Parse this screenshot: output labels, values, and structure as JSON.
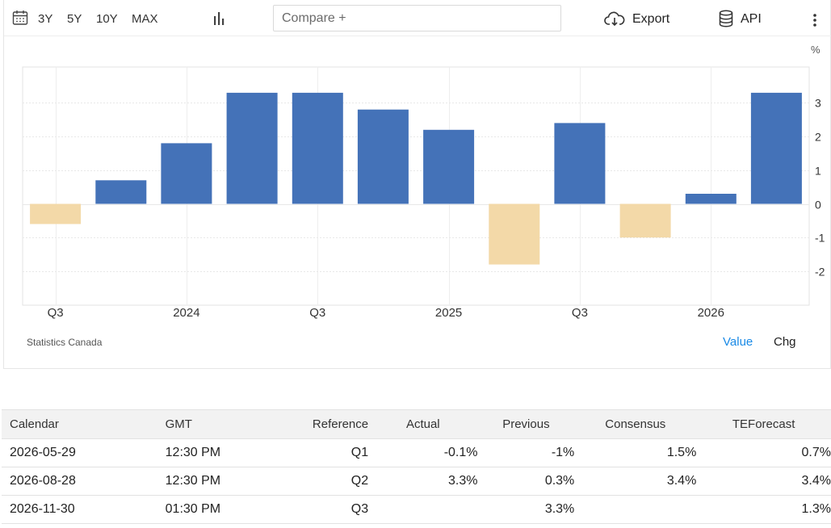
{
  "toolbar": {
    "ranges": [
      "3Y",
      "5Y",
      "10Y",
      "MAX"
    ],
    "compare_placeholder": "Compare +",
    "export_label": "Export",
    "api_label": "API",
    "icons": [
      "calendar-icon",
      "bar-chart-icon",
      "cloud-download-icon",
      "database-icon",
      "more-vertical-icon"
    ]
  },
  "chart": {
    "source": "Statistics Canada",
    "unit": "%",
    "modes": {
      "value": "Value",
      "chg": "Chg"
    },
    "colors": {
      "positive": "#4472b8",
      "negative": "#f3d9a8",
      "active_mode": "#1a8ae6"
    }
  },
  "chart_data": {
    "type": "bar",
    "categories": [
      "2023Q3",
      "2023Q4",
      "2024Q1",
      "2024Q2",
      "2024Q3",
      "2024Q4",
      "2025Q1",
      "2025Q2",
      "2025Q3",
      "2025Q4",
      "2026Q1",
      "2026Q2"
    ],
    "values": [
      -0.6,
      0.7,
      1.8,
      3.3,
      3.3,
      2.8,
      2.2,
      -1.8,
      2.4,
      -1.0,
      0.3,
      3.3
    ],
    "x_tick_labels": [
      {
        "label": "Q3",
        "at": 0
      },
      {
        "label": "2024",
        "at": 2
      },
      {
        "label": "Q3",
        "at": 4
      },
      {
        "label": "2025",
        "at": 6
      },
      {
        "label": "Q3",
        "at": 8
      },
      {
        "label": "2026",
        "at": 10
      }
    ],
    "y_ticks": [
      3,
      2,
      1,
      0,
      -1,
      -2
    ],
    "ylim": [
      -3,
      4
    ],
    "ylabel": "%",
    "grid": true,
    "legend": "none"
  },
  "calendar": {
    "headers": [
      "Calendar",
      "GMT",
      "Reference",
      "Actual",
      "Previous",
      "Consensus",
      "TEForecast"
    ],
    "rows": [
      [
        "2026-05-29",
        "12:30 PM",
        "Q1",
        "-0.1%",
        "-1%",
        "1.5%",
        "0.7%"
      ],
      [
        "2026-08-28",
        "12:30 PM",
        "Q2",
        "3.3%",
        "0.3%",
        "3.4%",
        "3.4%"
      ],
      [
        "2026-11-30",
        "01:30 PM",
        "Q3",
        "",
        "3.3%",
        "",
        "1.3%"
      ]
    ]
  }
}
